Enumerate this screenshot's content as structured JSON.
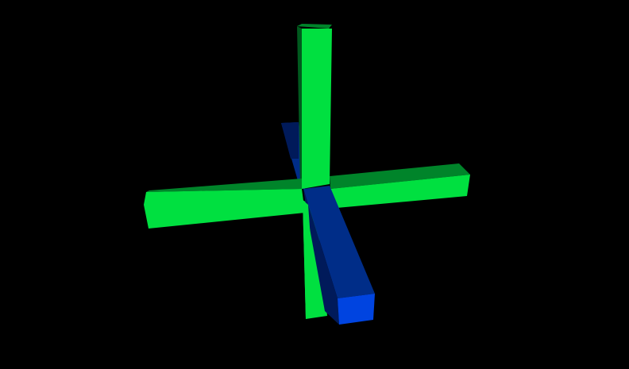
{
  "scene": {
    "background_color": "#000000",
    "colors": {
      "green_front": "#00E040",
      "green_top": "#00842A",
      "green_side": "#006020",
      "blue_front": "#0044E0",
      "blue_top": "#002D88",
      "blue_side": "#001A5A"
    },
    "objects": [
      {
        "name": "vertical-bar",
        "color": "green"
      },
      {
        "name": "horizontal-bar",
        "color": "green"
      },
      {
        "name": "depth-bar",
        "color": "blue"
      }
    ]
  }
}
